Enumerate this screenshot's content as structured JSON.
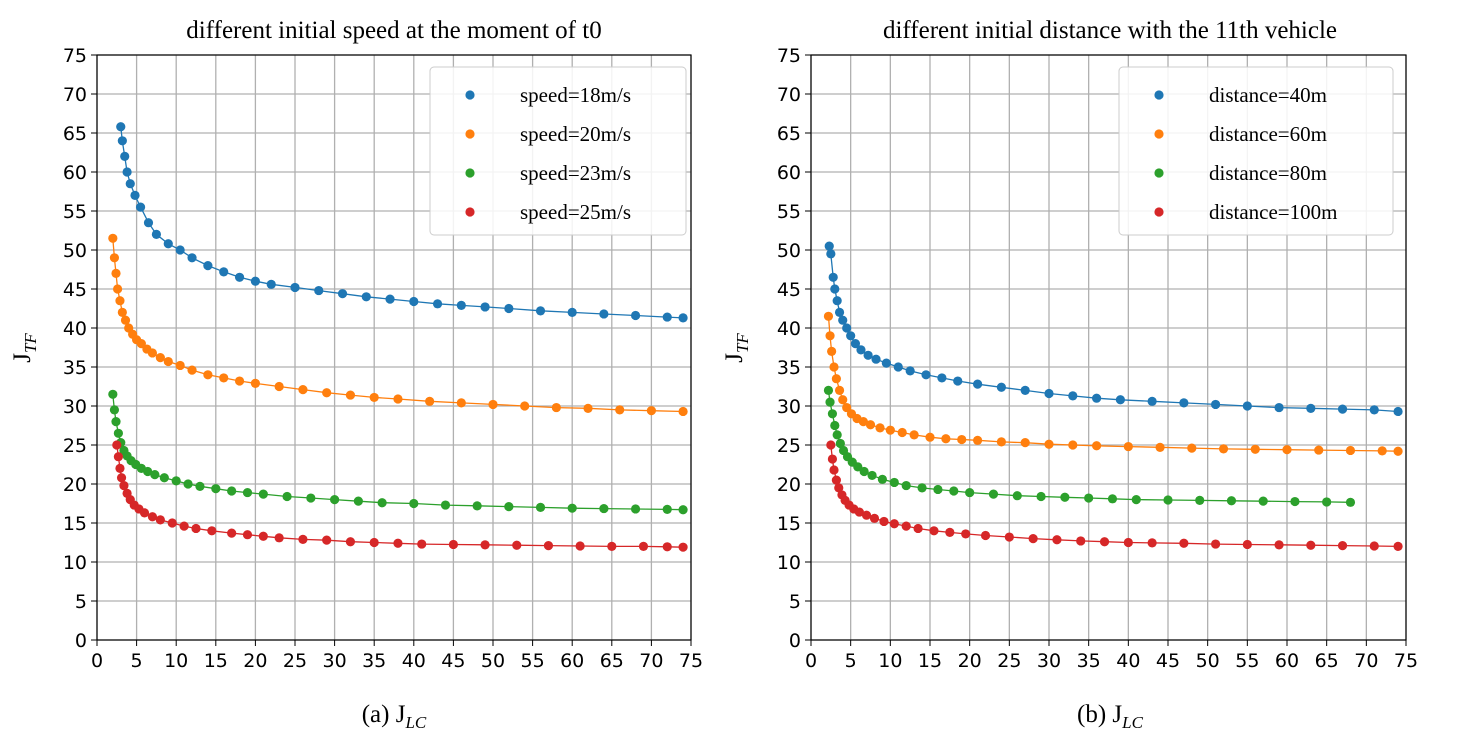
{
  "chart_data": [
    {
      "type": "scatter",
      "title": "different initial speed at the moment of t0",
      "xlabel": "(a) J",
      "xlabel_sub": "LC",
      "ylabel": "J",
      "ylabel_sub": "TF",
      "xlim": [
        0,
        75
      ],
      "ylim": [
        0,
        75
      ],
      "xticks": [
        0,
        5,
        10,
        15,
        20,
        25,
        30,
        35,
        40,
        45,
        50,
        55,
        60,
        65,
        70,
        75
      ],
      "yticks": [
        0,
        5,
        10,
        15,
        20,
        25,
        30,
        35,
        40,
        45,
        50,
        55,
        60,
        65,
        70,
        75
      ],
      "grid": true,
      "legend_position": "top-right",
      "series": [
        {
          "name": "speed=18m/s",
          "color": "#1f77b4",
          "x": [
            3,
            3.2,
            3.5,
            3.8,
            4.2,
            4.8,
            5.5,
            6.5,
            7.5,
            9,
            10.5,
            12,
            14,
            16,
            18,
            20,
            22,
            25,
            28,
            31,
            34,
            37,
            40,
            43,
            46,
            49,
            52,
            56,
            60,
            64,
            68,
            72,
            74
          ],
          "y": [
            65.8,
            64,
            62,
            60,
            58.5,
            57,
            55.5,
            53.5,
            52,
            50.8,
            50,
            49,
            48,
            47.2,
            46.5,
            46,
            45.6,
            45.2,
            44.8,
            44.4,
            44,
            43.7,
            43.4,
            43.1,
            42.9,
            42.7,
            42.5,
            42.2,
            42,
            41.8,
            41.6,
            41.4,
            41.3
          ]
        },
        {
          "name": "speed=20m/s",
          "color": "#ff7f0e",
          "x": [
            2,
            2.2,
            2.4,
            2.6,
            2.9,
            3.2,
            3.6,
            4,
            4.5,
            5,
            5.6,
            6.3,
            7,
            8,
            9,
            10.5,
            12,
            14,
            16,
            18,
            20,
            23,
            26,
            29,
            32,
            35,
            38,
            42,
            46,
            50,
            54,
            58,
            62,
            66,
            70,
            74
          ],
          "y": [
            51.5,
            49,
            47,
            45,
            43.5,
            42,
            41,
            40,
            39.2,
            38.5,
            38,
            37.3,
            36.8,
            36.2,
            35.7,
            35.2,
            34.6,
            34,
            33.6,
            33.2,
            32.9,
            32.5,
            32.1,
            31.7,
            31.4,
            31.1,
            30.9,
            30.6,
            30.4,
            30.2,
            30,
            29.8,
            29.7,
            29.5,
            29.4,
            29.3
          ]
        },
        {
          "name": "speed=23m/s",
          "color": "#2ca02c",
          "x": [
            2,
            2.2,
            2.4,
            2.7,
            3,
            3.4,
            3.8,
            4.3,
            4.9,
            5.6,
            6.4,
            7.3,
            8.5,
            10,
            11.5,
            13,
            15,
            17,
            19,
            21,
            24,
            27,
            30,
            33,
            36,
            40,
            44,
            48,
            52,
            56,
            60,
            64,
            68,
            72,
            74
          ],
          "y": [
            31.5,
            29.5,
            28,
            26.5,
            25.3,
            24.3,
            23.6,
            23,
            22.5,
            22,
            21.6,
            21.2,
            20.8,
            20.4,
            20,
            19.7,
            19.4,
            19.1,
            18.9,
            18.7,
            18.4,
            18.2,
            18,
            17.8,
            17.6,
            17.5,
            17.3,
            17.2,
            17.1,
            17,
            16.9,
            16.85,
            16.8,
            16.75,
            16.7
          ]
        },
        {
          "name": "speed=25m/s",
          "color": "#d62728",
          "x": [
            2.5,
            2.7,
            2.9,
            3.1,
            3.4,
            3.8,
            4.2,
            4.7,
            5.3,
            6,
            7,
            8,
            9.5,
            11,
            12.5,
            14.5,
            17,
            19,
            21,
            23,
            26,
            29,
            32,
            35,
            38,
            41,
            45,
            49,
            53,
            57,
            61,
            65,
            69,
            72,
            74
          ],
          "y": [
            25,
            23.5,
            22,
            20.8,
            19.8,
            18.8,
            18,
            17.3,
            16.8,
            16.3,
            15.8,
            15.4,
            15,
            14.6,
            14.3,
            14,
            13.7,
            13.5,
            13.3,
            13.1,
            12.9,
            12.8,
            12.6,
            12.5,
            12.4,
            12.3,
            12.25,
            12.2,
            12.15,
            12.1,
            12.05,
            12,
            12,
            11.95,
            11.9
          ]
        }
      ]
    },
    {
      "type": "scatter",
      "title": "different initial distance with the 11th vehicle",
      "xlabel": "(b) J",
      "xlabel_sub": "LC",
      "ylabel": "J",
      "ylabel_sub": "TF",
      "xlim": [
        0,
        75
      ],
      "ylim": [
        0,
        75
      ],
      "xticks": [
        0,
        5,
        10,
        15,
        20,
        25,
        30,
        35,
        40,
        45,
        50,
        55,
        60,
        65,
        70,
        75
      ],
      "yticks": [
        0,
        5,
        10,
        15,
        20,
        25,
        30,
        35,
        40,
        45,
        50,
        55,
        60,
        65,
        70,
        75
      ],
      "grid": true,
      "legend_position": "top-right",
      "series": [
        {
          "name": "distance=40m",
          "color": "#1f77b4",
          "x": [
            2.3,
            2.5,
            2.8,
            3,
            3.3,
            3.6,
            4,
            4.5,
            5,
            5.6,
            6.3,
            7.2,
            8.2,
            9.5,
            11,
            12.5,
            14.5,
            16.5,
            18.5,
            21,
            24,
            27,
            30,
            33,
            36,
            39,
            43,
            47,
            51,
            55,
            59,
            63,
            67,
            71,
            74
          ],
          "y": [
            50.5,
            49.5,
            46.5,
            45,
            43.5,
            42,
            41,
            40,
            39,
            38,
            37.2,
            36.5,
            36,
            35.5,
            35,
            34.5,
            34,
            33.6,
            33.2,
            32.8,
            32.4,
            32,
            31.6,
            31.3,
            31,
            30.8,
            30.6,
            30.4,
            30.2,
            30,
            29.8,
            29.7,
            29.6,
            29.5,
            29.3
          ]
        },
        {
          "name": "distance=60m",
          "color": "#ff7f0e",
          "x": [
            2.2,
            2.4,
            2.6,
            2.9,
            3.2,
            3.6,
            4,
            4.5,
            5.1,
            5.8,
            6.6,
            7.5,
            8.7,
            10,
            11.5,
            13,
            15,
            17,
            19,
            21,
            24,
            27,
            30,
            33,
            36,
            40,
            44,
            48,
            52,
            56,
            60,
            64,
            68,
            72,
            74
          ],
          "y": [
            41.5,
            39,
            37,
            35,
            33.5,
            32,
            30.8,
            29.8,
            29,
            28.4,
            28,
            27.6,
            27.2,
            26.9,
            26.6,
            26.3,
            26,
            25.8,
            25.7,
            25.6,
            25.4,
            25.3,
            25.1,
            25,
            24.9,
            24.8,
            24.7,
            24.6,
            24.5,
            24.45,
            24.4,
            24.35,
            24.3,
            24.25,
            24.2
          ]
        },
        {
          "name": "distance=80m",
          "color": "#2ca02c",
          "x": [
            2.2,
            2.4,
            2.7,
            3,
            3.3,
            3.7,
            4.1,
            4.6,
            5.2,
            5.9,
            6.7,
            7.7,
            9,
            10.5,
            12,
            14,
            16,
            18,
            20,
            23,
            26,
            29,
            32,
            35,
            38,
            41,
            45,
            49,
            53,
            57,
            61,
            65,
            68
          ],
          "y": [
            32,
            30.5,
            29,
            27.5,
            26.3,
            25.2,
            24.3,
            23.5,
            22.8,
            22.2,
            21.6,
            21.1,
            20.6,
            20.2,
            19.8,
            19.5,
            19.3,
            19.1,
            18.9,
            18.7,
            18.5,
            18.4,
            18.3,
            18.2,
            18.1,
            18,
            17.95,
            17.9,
            17.85,
            17.8,
            17.75,
            17.7,
            17.65
          ]
        },
        {
          "name": "distance=100m",
          "color": "#d62728",
          "x": [
            2.5,
            2.7,
            2.9,
            3.2,
            3.5,
            3.9,
            4.3,
            4.8,
            5.4,
            6.1,
            7,
            8,
            9.2,
            10.5,
            12,
            13.5,
            15.5,
            17.5,
            19.5,
            22,
            25,
            28,
            31,
            34,
            37,
            40,
            43,
            47,
            51,
            55,
            59,
            63,
            67,
            71,
            74
          ],
          "y": [
            25,
            23.2,
            21.8,
            20.5,
            19.5,
            18.6,
            17.9,
            17.3,
            16.8,
            16.4,
            16,
            15.6,
            15.2,
            14.9,
            14.6,
            14.3,
            14,
            13.8,
            13.6,
            13.4,
            13.2,
            13,
            12.85,
            12.7,
            12.6,
            12.5,
            12.45,
            12.4,
            12.3,
            12.25,
            12.2,
            12.15,
            12.1,
            12.05,
            12
          ]
        }
      ]
    }
  ]
}
